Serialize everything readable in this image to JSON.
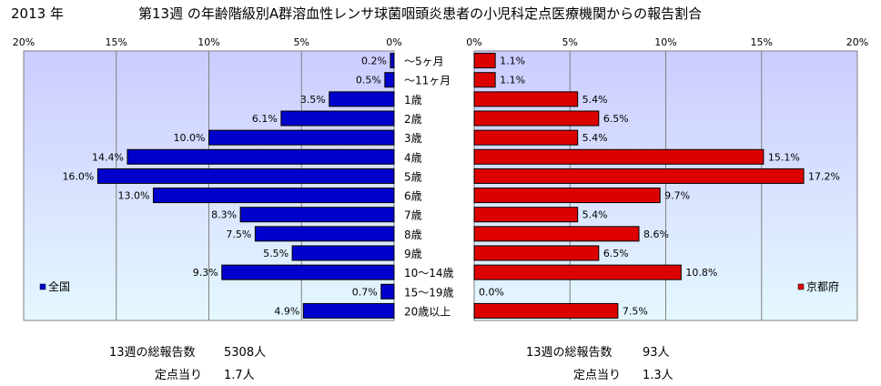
{
  "header": {
    "year": "2013 年",
    "title": "第13週 の年齢階級別A群溶血性レンサ球菌咽頭炎患者の小児科定点医療機関からの報告割合"
  },
  "colors": {
    "left_bar": "#0000CC",
    "right_bar": "#DD0000",
    "plot_top": "#CCCCFF",
    "plot_bottom": "#E4F8FF"
  },
  "footer": {
    "left_total_label": "13週の総報告数",
    "left_total_value": "5308人",
    "left_per_label": "定点当り",
    "left_per_value": "1.7人",
    "right_total_label": "13週の総報告数",
    "right_total_value": "93人",
    "right_per_label": "定点当り",
    "right_per_value": "1.3人"
  },
  "chart_data": [
    {
      "type": "bar",
      "orientation": "horizontal",
      "direction": "right-to-left",
      "legend": "全国",
      "legend_position": "bottom-left",
      "xlim": [
        0,
        20
      ],
      "ticks": [
        "20%",
        "15%",
        "10%",
        "5%",
        "0%"
      ],
      "categories": [
        "～5ヶ月",
        "～11ヶ月",
        "1歳",
        "2歳",
        "3歳",
        "4歳",
        "5歳",
        "6歳",
        "7歳",
        "8歳",
        "9歳",
        "10～14歳",
        "15～19歳",
        "20歳以上"
      ],
      "values": [
        0.2,
        0.5,
        3.5,
        6.1,
        10.0,
        14.4,
        16.0,
        13.0,
        8.3,
        7.5,
        5.5,
        9.3,
        0.7,
        4.9
      ],
      "labels": [
        "0.2%",
        "0.5%",
        "3.5%",
        "6.1%",
        "10.0%",
        "14.4%",
        "16.0%",
        "13.0%",
        "8.3%",
        "7.5%",
        "5.5%",
        "9.3%",
        "0.7%",
        "4.9%"
      ],
      "grid": true
    },
    {
      "type": "bar",
      "orientation": "horizontal",
      "direction": "left-to-right",
      "legend": "京都府",
      "legend_position": "bottom-right",
      "xlim": [
        0,
        20
      ],
      "ticks": [
        "0%",
        "5%",
        "10%",
        "15%",
        "20%"
      ],
      "categories": [
        "～5ヶ月",
        "～11ヶ月",
        "1歳",
        "2歳",
        "3歳",
        "4歳",
        "5歳",
        "6歳",
        "7歳",
        "8歳",
        "9歳",
        "10～14歳",
        "15～19歳",
        "20歳以上"
      ],
      "values": [
        1.1,
        1.1,
        5.4,
        6.5,
        5.4,
        15.1,
        17.2,
        9.7,
        5.4,
        8.6,
        6.5,
        10.8,
        0.0,
        7.5
      ],
      "labels": [
        "1.1%",
        "1.1%",
        "5.4%",
        "6.5%",
        "5.4%",
        "15.1%",
        "17.2%",
        "9.7%",
        "5.4%",
        "8.6%",
        "6.5%",
        "10.8%",
        "0.0%",
        "7.5%"
      ],
      "grid": true
    }
  ]
}
